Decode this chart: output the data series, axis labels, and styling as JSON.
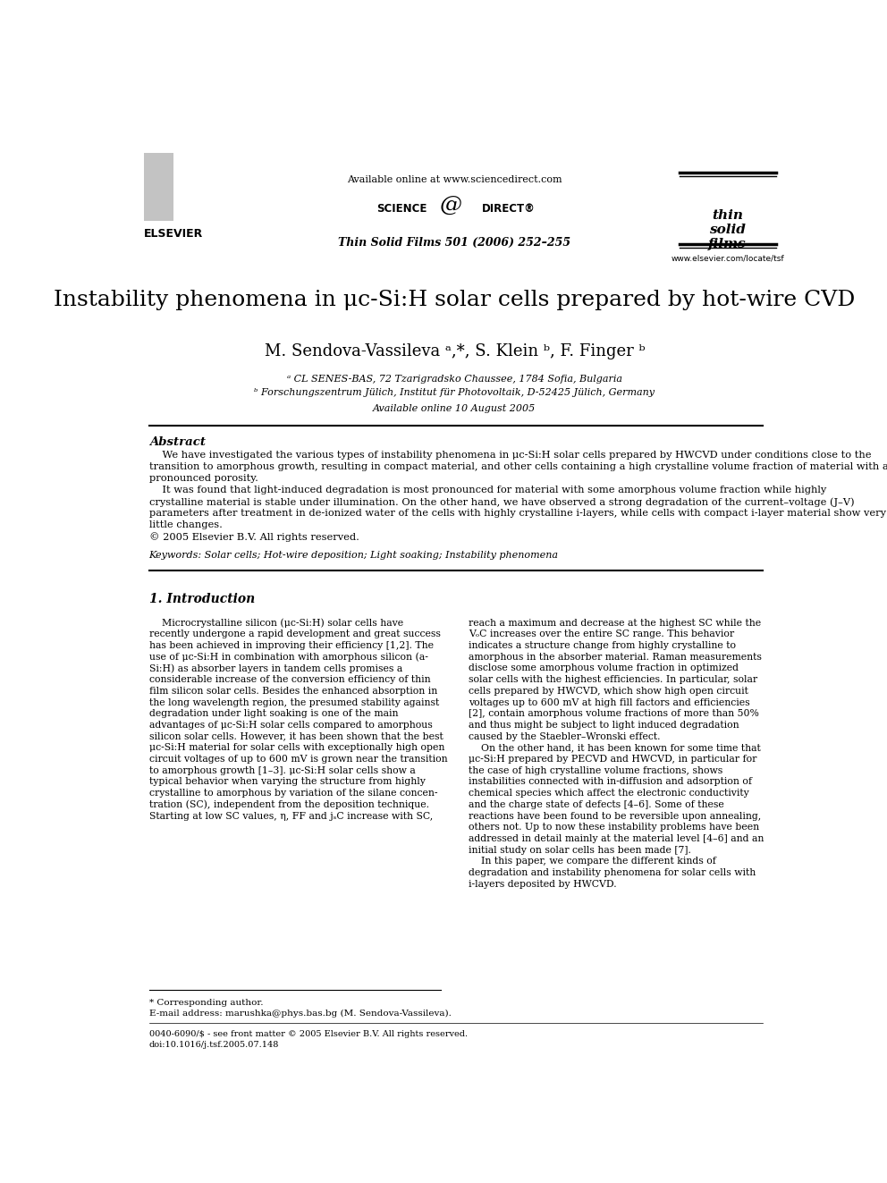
{
  "bg_color": "#ffffff",
  "title": "Instability phenomena in μc-Si:H solar cells prepared by hot-wire CVD",
  "authors": "M. Sendova-Vassileva ᵃ,*, S. Klein ᵇ, F. Finger ᵇ",
  "affil_a": "ᵃ CL SENES-BAS, 72 Tzarigradsko Chaussee, 1784 Sofia, Bulgaria",
  "affil_b": "ᵇ Forschungszentrum Jülich, Institut für Photovoltaik, D-52425 Jülich, Germany",
  "available_online": "Available online 10 August 2005",
  "journal_header": "Available online at www.sciencedirect.com",
  "journal_ref": "Thin Solid Films 501 (2006) 252–255",
  "journal_url": "www.elsevier.com/locate/tsf",
  "abstract_title": "Abstract",
  "keywords": "Keywords: Solar cells; Hot-wire deposition; Light soaking; Instability phenomena",
  "section1_title": "1. Introduction",
  "footnote_corr": "* Corresponding author.",
  "footnote_email": "E-mail address: marushka@phys.bas.bg (M. Sendova-Vassileva).",
  "footnote_doi1": "0040-6090/$ - see front matter © 2005 Elsevier B.V. All rights reserved.",
  "footnote_doi2": "doi:10.1016/j.tsf.2005.07.148",
  "abstract_lines": [
    "    We have investigated the various types of instability phenomena in μc-Si:H solar cells prepared by HWCVD under conditions close to the",
    "transition to amorphous growth, resulting in compact material, and other cells containing a high crystalline volume fraction of material with a",
    "pronounced porosity.",
    "    It was found that light-induced degradation is most pronounced for material with some amorphous volume fraction while highly",
    "crystalline material is stable under illumination. On the other hand, we have observed a strong degradation of the current–voltage (J–V)",
    "parameters after treatment in de-ionized water of the cells with highly crystalline i-layers, while cells with compact i-layer material show very",
    "little changes.",
    "© 2005 Elsevier B.V. All rights reserved."
  ],
  "left_col_lines": [
    "    Microcrystalline silicon (μc-Si:H) solar cells have",
    "recently undergone a rapid development and great success",
    "has been achieved in improving their efficiency [1,2]. The",
    "use of μc-Si:H in combination with amorphous silicon (a-",
    "Si:H) as absorber layers in tandem cells promises a",
    "considerable increase of the conversion efficiency of thin",
    "film silicon solar cells. Besides the enhanced absorption in",
    "the long wavelength region, the presumed stability against",
    "degradation under light soaking is one of the main",
    "advantages of μc-Si:H solar cells compared to amorphous",
    "silicon solar cells. However, it has been shown that the best",
    "μc-Si:H material for solar cells with exceptionally high open",
    "circuit voltages of up to 600 mV is grown near the transition",
    "to amorphous growth [1–3]. μc-Si:H solar cells show a",
    "typical behavior when varying the structure from highly",
    "crystalline to amorphous by variation of the silane concen-",
    "tration (SC), independent from the deposition technique.",
    "Starting at low SC values, η, FF and jₛC increase with SC,"
  ],
  "right_col_lines": [
    "reach a maximum and decrease at the highest SC while the",
    "VₒC increases over the entire SC range. This behavior",
    "indicates a structure change from highly crystalline to",
    "amorphous in the absorber material. Raman measurements",
    "disclose some amorphous volume fraction in optimized",
    "solar cells with the highest efficiencies. In particular, solar",
    "cells prepared by HWCVD, which show high open circuit",
    "voltages up to 600 mV at high fill factors and efficiencies",
    "[2], contain amorphous volume fractions of more than 50%",
    "and thus might be subject to light induced degradation",
    "caused by the Staebler–Wronski effect.",
    "    On the other hand, it has been known for some time that",
    "μc-Si:H prepared by PECVD and HWCVD, in particular for",
    "the case of high crystalline volume fractions, shows",
    "instabilities connected with in-diffusion and adsorption of",
    "chemical species which affect the electronic conductivity",
    "and the charge state of defects [4–6]. Some of these",
    "reactions have been found to be reversible upon annealing,",
    "others not. Up to now these instability problems have been",
    "addressed in detail mainly at the material level [4–6] and an",
    "initial study on solar cells has been made [7].",
    "    In this paper, we compare the different kinds of",
    "degradation and instability phenomena for solar cells with",
    "i-layers deposited by HWCVD."
  ]
}
